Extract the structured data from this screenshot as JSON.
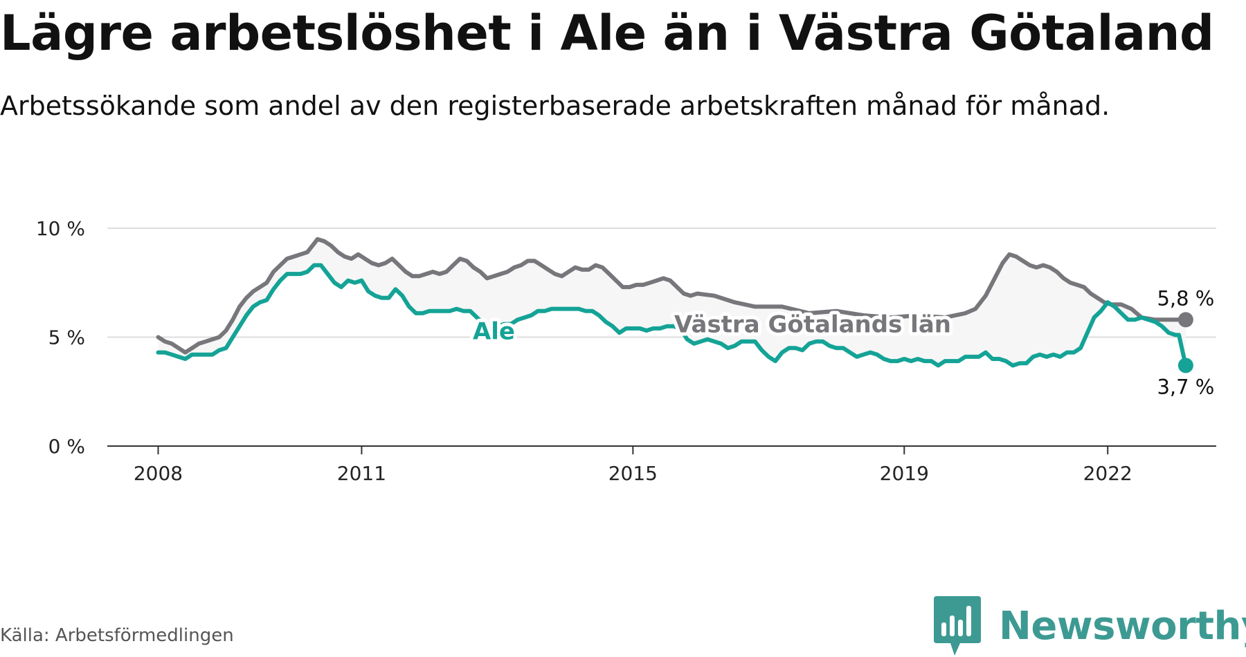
{
  "title": "Lägre arbetslöshet i Ale än i Västra Götaland",
  "subtitle": "Arbetssökande som andel av den registerbaserade arbetskraften månad för månad.",
  "source": "Källa: Arbetsförmedlingen",
  "brand": "Newsworthy",
  "colors": {
    "ale": "#14a396",
    "vg": "#77767a",
    "band": "#f6f6f6",
    "grid": "#dddddd",
    "axis": "#333333",
    "brand": "#3d9a93"
  },
  "chart_data": {
    "type": "line",
    "title": "Lägre arbetslöshet i Ale än i Västra Götaland",
    "xlabel": "",
    "ylabel": "",
    "ylim": [
      0,
      10
    ],
    "xlim": [
      2007.25,
      2023.6
    ],
    "yticks": [
      {
        "value": 0,
        "label": "0 %"
      },
      {
        "value": 5,
        "label": "5 %"
      },
      {
        "value": 10,
        "label": "10 %"
      }
    ],
    "xticks": [
      {
        "value": 2008,
        "label": "2008"
      },
      {
        "value": 2011,
        "label": "2011"
      },
      {
        "value": 2015,
        "label": "2015"
      },
      {
        "value": 2019,
        "label": "2019"
      },
      {
        "value": 2022,
        "label": "2022"
      }
    ],
    "series": [
      {
        "name": "Västra Götalands län",
        "key": "vg",
        "points": [
          [
            2008.0,
            5.0
          ],
          [
            2008.1,
            4.8
          ],
          [
            2008.2,
            4.7
          ],
          [
            2008.3,
            4.5
          ],
          [
            2008.4,
            4.3
          ],
          [
            2008.5,
            4.5
          ],
          [
            2008.6,
            4.7
          ],
          [
            2008.7,
            4.8
          ],
          [
            2008.8,
            4.9
          ],
          [
            2008.9,
            5.0
          ],
          [
            2009.0,
            5.3
          ],
          [
            2009.1,
            5.8
          ],
          [
            2009.2,
            6.4
          ],
          [
            2009.3,
            6.8
          ],
          [
            2009.4,
            7.1
          ],
          [
            2009.5,
            7.3
          ],
          [
            2009.6,
            7.5
          ],
          [
            2009.7,
            8.0
          ],
          [
            2009.8,
            8.3
          ],
          [
            2009.9,
            8.6
          ],
          [
            2010.0,
            8.7
          ],
          [
            2010.1,
            8.8
          ],
          [
            2010.2,
            8.9
          ],
          [
            2010.3,
            9.3
          ],
          [
            2010.35,
            9.5
          ],
          [
            2010.45,
            9.4
          ],
          [
            2010.55,
            9.2
          ],
          [
            2010.65,
            8.9
          ],
          [
            2010.75,
            8.7
          ],
          [
            2010.85,
            8.6
          ],
          [
            2010.95,
            8.8
          ],
          [
            2011.05,
            8.6
          ],
          [
            2011.15,
            8.4
          ],
          [
            2011.25,
            8.3
          ],
          [
            2011.35,
            8.4
          ],
          [
            2011.45,
            8.6
          ],
          [
            2011.55,
            8.3
          ],
          [
            2011.65,
            8.0
          ],
          [
            2011.75,
            7.8
          ],
          [
            2011.85,
            7.8
          ],
          [
            2011.95,
            7.9
          ],
          [
            2012.05,
            8.0
          ],
          [
            2012.15,
            7.9
          ],
          [
            2012.25,
            8.0
          ],
          [
            2012.35,
            8.3
          ],
          [
            2012.45,
            8.6
          ],
          [
            2012.55,
            8.5
          ],
          [
            2012.65,
            8.2
          ],
          [
            2012.75,
            8.0
          ],
          [
            2012.85,
            7.7
          ],
          [
            2012.95,
            7.8
          ],
          [
            2013.05,
            7.9
          ],
          [
            2013.15,
            8.0
          ],
          [
            2013.25,
            8.2
          ],
          [
            2013.35,
            8.3
          ],
          [
            2013.45,
            8.5
          ],
          [
            2013.55,
            8.5
          ],
          [
            2013.65,
            8.3
          ],
          [
            2013.75,
            8.1
          ],
          [
            2013.85,
            7.9
          ],
          [
            2013.95,
            7.8
          ],
          [
            2014.05,
            8.0
          ],
          [
            2014.15,
            8.2
          ],
          [
            2014.25,
            8.1
          ],
          [
            2014.35,
            8.1
          ],
          [
            2014.45,
            8.3
          ],
          [
            2014.55,
            8.2
          ],
          [
            2014.65,
            7.9
          ],
          [
            2014.75,
            7.6
          ],
          [
            2014.85,
            7.3
          ],
          [
            2014.95,
            7.3
          ],
          [
            2015.05,
            7.4
          ],
          [
            2015.15,
            7.4
          ],
          [
            2015.25,
            7.5
          ],
          [
            2015.35,
            7.6
          ],
          [
            2015.45,
            7.7
          ],
          [
            2015.55,
            7.6
          ],
          [
            2015.65,
            7.3
          ],
          [
            2015.75,
            7.0
          ],
          [
            2015.85,
            6.9
          ],
          [
            2015.95,
            7.0
          ],
          [
            2016.2,
            6.9
          ],
          [
            2016.5,
            6.6
          ],
          [
            2016.8,
            6.4
          ],
          [
            2017.2,
            6.4
          ],
          [
            2017.6,
            6.1
          ],
          [
            2018.0,
            6.2
          ],
          [
            2018.4,
            6.0
          ],
          [
            2018.8,
            5.9
          ],
          [
            2019.2,
            6.0
          ],
          [
            2019.6,
            5.9
          ],
          [
            2019.9,
            6.1
          ],
          [
            2020.05,
            6.3
          ],
          [
            2020.2,
            6.9
          ],
          [
            2020.35,
            7.8
          ],
          [
            2020.45,
            8.4
          ],
          [
            2020.55,
            8.8
          ],
          [
            2020.65,
            8.7
          ],
          [
            2020.75,
            8.5
          ],
          [
            2020.85,
            8.3
          ],
          [
            2020.95,
            8.2
          ],
          [
            2021.05,
            8.3
          ],
          [
            2021.15,
            8.2
          ],
          [
            2021.25,
            8.0
          ],
          [
            2021.35,
            7.7
          ],
          [
            2021.45,
            7.5
          ],
          [
            2021.55,
            7.4
          ],
          [
            2021.65,
            7.3
          ],
          [
            2021.75,
            7.0
          ],
          [
            2021.85,
            6.8
          ],
          [
            2021.95,
            6.6
          ],
          [
            2022.05,
            6.5
          ],
          [
            2022.2,
            6.5
          ],
          [
            2022.35,
            6.3
          ],
          [
            2022.5,
            5.9
          ],
          [
            2022.7,
            5.8
          ],
          [
            2022.9,
            5.8
          ],
          [
            2023.05,
            5.8
          ],
          [
            2023.15,
            5.8
          ]
        ],
        "end_label": "5,8 %",
        "inline_label": "Västra Götalands län"
      },
      {
        "name": "Ale",
        "key": "ale",
        "points": [
          [
            2008.0,
            4.3
          ],
          [
            2008.1,
            4.3
          ],
          [
            2008.2,
            4.2
          ],
          [
            2008.3,
            4.1
          ],
          [
            2008.4,
            4.0
          ],
          [
            2008.5,
            4.2
          ],
          [
            2008.6,
            4.2
          ],
          [
            2008.7,
            4.2
          ],
          [
            2008.8,
            4.2
          ],
          [
            2008.9,
            4.4
          ],
          [
            2009.0,
            4.5
          ],
          [
            2009.1,
            5.0
          ],
          [
            2009.2,
            5.5
          ],
          [
            2009.3,
            6.0
          ],
          [
            2009.4,
            6.4
          ],
          [
            2009.5,
            6.6
          ],
          [
            2009.6,
            6.7
          ],
          [
            2009.7,
            7.2
          ],
          [
            2009.8,
            7.6
          ],
          [
            2009.9,
            7.9
          ],
          [
            2010.0,
            7.9
          ],
          [
            2010.1,
            7.9
          ],
          [
            2010.2,
            8.0
          ],
          [
            2010.3,
            8.3
          ],
          [
            2010.4,
            8.3
          ],
          [
            2010.5,
            7.9
          ],
          [
            2010.6,
            7.5
          ],
          [
            2010.7,
            7.3
          ],
          [
            2010.8,
            7.6
          ],
          [
            2010.9,
            7.5
          ],
          [
            2011.0,
            7.6
          ],
          [
            2011.1,
            7.1
          ],
          [
            2011.2,
            6.9
          ],
          [
            2011.3,
            6.8
          ],
          [
            2011.4,
            6.8
          ],
          [
            2011.5,
            7.2
          ],
          [
            2011.6,
            6.9
          ],
          [
            2011.7,
            6.4
          ],
          [
            2011.8,
            6.1
          ],
          [
            2011.9,
            6.1
          ],
          [
            2012.0,
            6.2
          ],
          [
            2012.1,
            6.2
          ],
          [
            2012.2,
            6.2
          ],
          [
            2012.3,
            6.2
          ],
          [
            2012.4,
            6.3
          ],
          [
            2012.5,
            6.2
          ],
          [
            2012.6,
            6.2
          ],
          [
            2012.7,
            5.9
          ],
          [
            2012.8,
            5.6
          ],
          [
            2012.9,
            5.2
          ],
          [
            2013.0,
            5.5
          ],
          [
            2013.1,
            5.6
          ],
          [
            2013.2,
            5.6
          ],
          [
            2013.3,
            5.8
          ],
          [
            2013.5,
            6.0
          ],
          [
            2013.6,
            6.2
          ],
          [
            2013.7,
            6.2
          ],
          [
            2013.8,
            6.3
          ],
          [
            2013.9,
            6.3
          ],
          [
            2014.0,
            6.3
          ],
          [
            2014.1,
            6.3
          ],
          [
            2014.2,
            6.3
          ],
          [
            2014.3,
            6.2
          ],
          [
            2014.4,
            6.2
          ],
          [
            2014.5,
            6.0
          ],
          [
            2014.6,
            5.7
          ],
          [
            2014.7,
            5.5
          ],
          [
            2014.8,
            5.2
          ],
          [
            2014.9,
            5.4
          ],
          [
            2015.0,
            5.4
          ],
          [
            2015.1,
            5.4
          ],
          [
            2015.2,
            5.3
          ],
          [
            2015.3,
            5.4
          ],
          [
            2015.4,
            5.4
          ],
          [
            2015.5,
            5.5
          ],
          [
            2015.6,
            5.5
          ],
          [
            2015.7,
            5.4
          ],
          [
            2015.8,
            4.9
          ],
          [
            2015.9,
            4.7
          ],
          [
            2016.0,
            4.8
          ],
          [
            2016.1,
            4.9
          ],
          [
            2016.2,
            4.8
          ],
          [
            2016.3,
            4.7
          ],
          [
            2016.4,
            4.5
          ],
          [
            2016.5,
            4.6
          ],
          [
            2016.6,
            4.8
          ],
          [
            2016.7,
            4.8
          ],
          [
            2016.8,
            4.8
          ],
          [
            2016.9,
            4.4
          ],
          [
            2017.0,
            4.1
          ],
          [
            2017.1,
            3.9
          ],
          [
            2017.2,
            4.3
          ],
          [
            2017.3,
            4.5
          ],
          [
            2017.4,
            4.5
          ],
          [
            2017.5,
            4.4
          ],
          [
            2017.6,
            4.7
          ],
          [
            2017.7,
            4.8
          ],
          [
            2017.8,
            4.8
          ],
          [
            2017.9,
            4.6
          ],
          [
            2018.0,
            4.5
          ],
          [
            2018.1,
            4.5
          ],
          [
            2018.2,
            4.3
          ],
          [
            2018.3,
            4.1
          ],
          [
            2018.4,
            4.2
          ],
          [
            2018.5,
            4.3
          ],
          [
            2018.6,
            4.2
          ],
          [
            2018.7,
            4.0
          ],
          [
            2018.8,
            3.9
          ],
          [
            2018.9,
            3.9
          ],
          [
            2019.0,
            4.0
          ],
          [
            2019.1,
            3.9
          ],
          [
            2019.2,
            4.0
          ],
          [
            2019.3,
            3.9
          ],
          [
            2019.4,
            3.9
          ],
          [
            2019.5,
            3.7
          ],
          [
            2019.6,
            3.9
          ],
          [
            2019.7,
            3.9
          ],
          [
            2019.8,
            3.9
          ],
          [
            2019.9,
            4.1
          ],
          [
            2020.0,
            4.1
          ],
          [
            2020.1,
            4.1
          ],
          [
            2020.2,
            4.3
          ],
          [
            2020.3,
            4.0
          ],
          [
            2020.4,
            4.0
          ],
          [
            2020.5,
            3.9
          ],
          [
            2020.6,
            3.7
          ],
          [
            2020.7,
            3.8
          ],
          [
            2020.8,
            3.8
          ],
          [
            2020.9,
            4.1
          ],
          [
            2021.0,
            4.2
          ],
          [
            2021.1,
            4.1
          ],
          [
            2021.2,
            4.2
          ],
          [
            2021.3,
            4.1
          ],
          [
            2021.4,
            4.3
          ],
          [
            2021.5,
            4.3
          ],
          [
            2021.6,
            4.5
          ],
          [
            2021.7,
            5.2
          ],
          [
            2021.8,
            5.9
          ],
          [
            2021.9,
            6.2
          ],
          [
            2022.0,
            6.6
          ],
          [
            2022.1,
            6.4
          ],
          [
            2022.2,
            6.1
          ],
          [
            2022.3,
            5.8
          ],
          [
            2022.4,
            5.8
          ],
          [
            2022.5,
            5.9
          ],
          [
            2022.6,
            5.8
          ],
          [
            2022.7,
            5.7
          ],
          [
            2022.8,
            5.5
          ],
          [
            2022.9,
            5.2
          ],
          [
            2023.0,
            5.1
          ],
          [
            2023.05,
            5.1
          ],
          [
            2023.15,
            3.7
          ]
        ],
        "end_label": "3,7 %",
        "inline_label": "Ale"
      }
    ]
  }
}
